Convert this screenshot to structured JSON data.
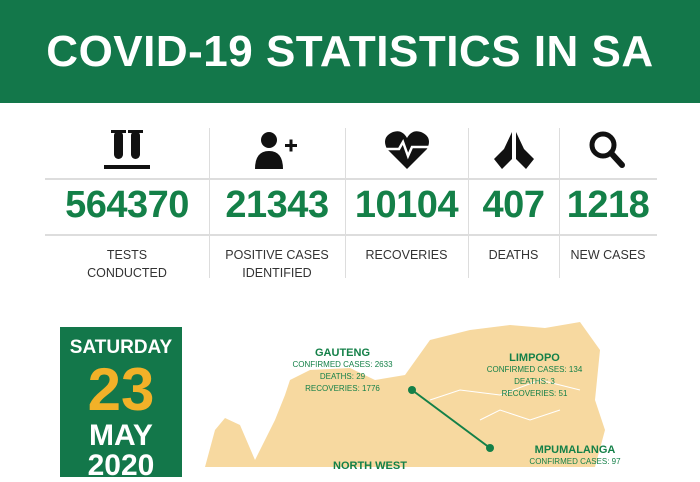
{
  "header": {
    "title": "COVID-19 STATISTICS IN SA"
  },
  "stats": [
    {
      "icon": "test-tubes-icon",
      "value": "564370",
      "label_line1": "TESTS",
      "label_line2": "CONDUCTED"
    },
    {
      "icon": "add-person-icon",
      "value": "21343",
      "label_line1": "POSITIVE CASES",
      "label_line2": "IDENTIFIED"
    },
    {
      "icon": "heartbeat-icon",
      "value": "10104",
      "label_line1": "RECOVERIES",
      "label_line2": ""
    },
    {
      "icon": "praying-hands-icon",
      "value": "407",
      "label_line1": "DEATHS",
      "label_line2": ""
    },
    {
      "icon": "magnifier-icon",
      "value": "1218",
      "label_line1": "NEW CASES",
      "label_line2": ""
    }
  ],
  "date": {
    "weekday": "SATURDAY",
    "day": "23",
    "month": "MAY",
    "year": "2020"
  },
  "provinces": [
    {
      "name": "GAUTENG",
      "confirmed": "CONFIRMED CASES: 2633",
      "deaths": "DEATHS: 29",
      "recoveries": "RECOVERIES: 1776"
    },
    {
      "name": "LIMPOPO",
      "confirmed": "CONFIRMED CASES: 134",
      "deaths": "DEATHS: 3",
      "recoveries": "RECOVERIES: 51"
    },
    {
      "name": "MPUMALANGA",
      "confirmed": "CONFIRMED CASES: 97"
    },
    {
      "name": "NORTH WEST"
    }
  ],
  "colors": {
    "brand_green": "#13774a",
    "accent_yellow": "#f2b128",
    "map_fill": "#f7d9a0"
  }
}
